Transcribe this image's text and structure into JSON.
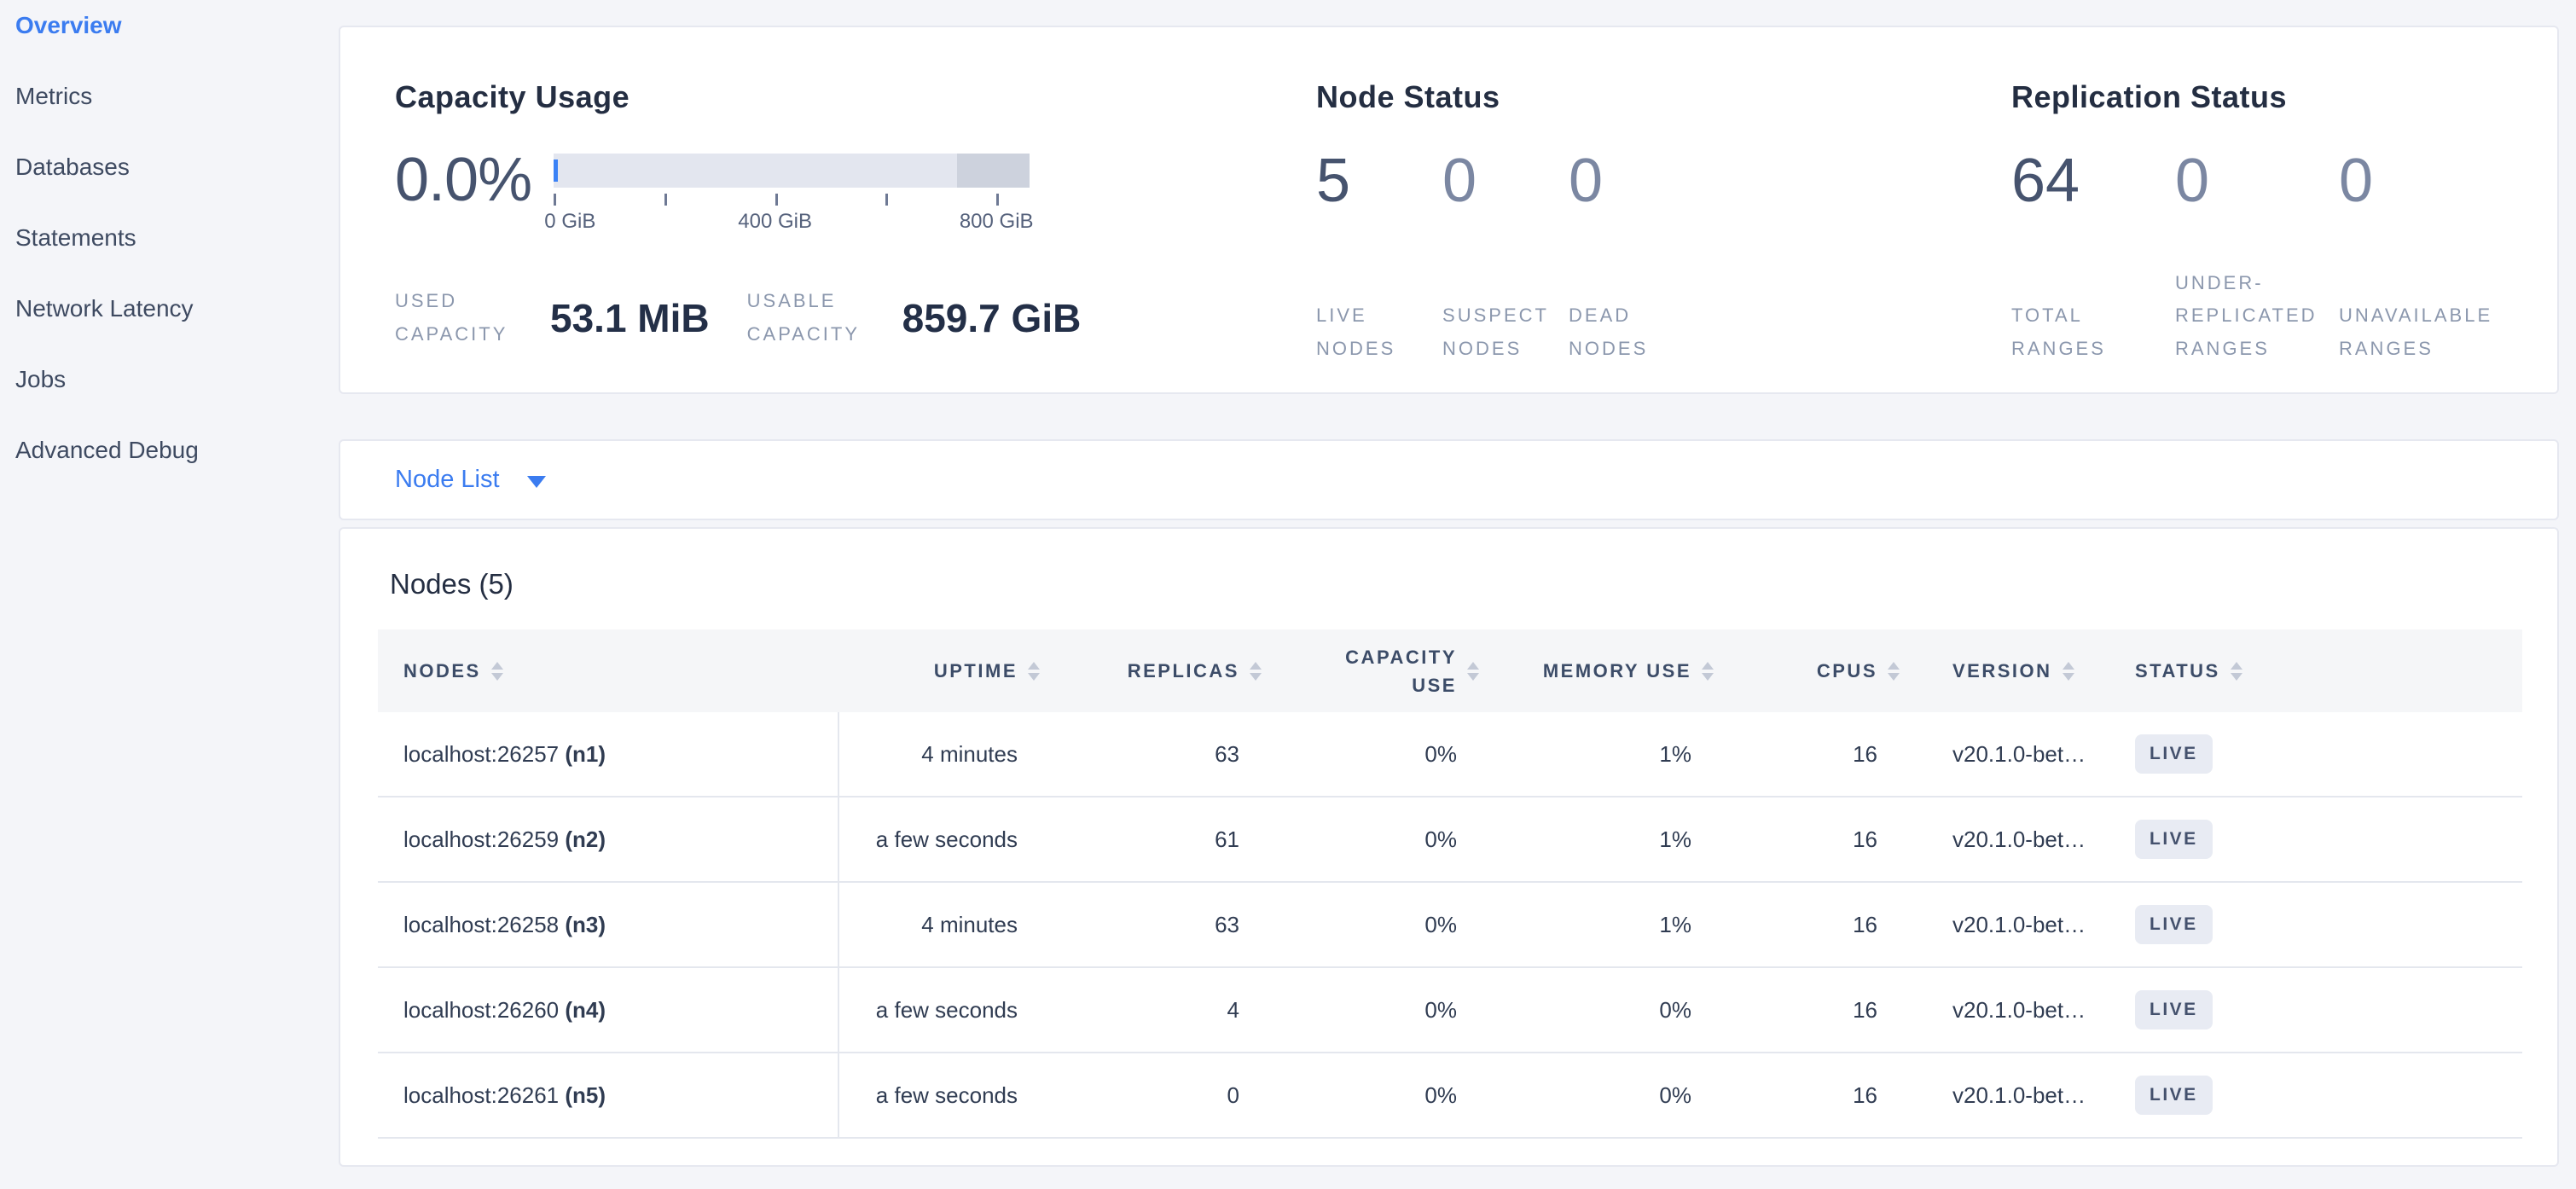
{
  "colors": {
    "accent_blue": "#3b7cf0",
    "bar_used_blue": "#3b82f6",
    "bar_bg": "#e3e6ef",
    "bar_secondary": "#cdd2dd",
    "badge_bg": "#e8ebf3",
    "badge_text": "#44516d"
  },
  "sidebar": {
    "items": [
      {
        "label": "Overview",
        "active": true
      },
      {
        "label": "Metrics",
        "active": false
      },
      {
        "label": "Databases",
        "active": false
      },
      {
        "label": "Statements",
        "active": false
      },
      {
        "label": "Network Latency",
        "active": false
      },
      {
        "label": "Jobs",
        "active": false
      },
      {
        "label": "Advanced Debug",
        "active": false
      }
    ]
  },
  "summary": {
    "capacity": {
      "title": "Capacity Usage",
      "percent": "0.0%",
      "bar": {
        "axis_max_gib": 860,
        "used_pct": 0.006,
        "secondary_start_pct": 84.8,
        "ticks": [
          {
            "gib": 0,
            "label": "0 GiB"
          },
          {
            "gib": 200,
            "label": ""
          },
          {
            "gib": 400,
            "label": "400 GiB"
          },
          {
            "gib": 600,
            "label": ""
          },
          {
            "gib": 800,
            "label": "800 GiB"
          }
        ]
      },
      "stats": [
        {
          "label": "USED CAPACITY",
          "value": "53.1 MiB"
        },
        {
          "label": "USABLE CAPACITY",
          "value": "859.7 GiB"
        }
      ]
    },
    "node_status": {
      "title": "Node Status",
      "stats": [
        {
          "value": "5",
          "label": "LIVE NODES",
          "muted": false
        },
        {
          "value": "0",
          "label": "SUSPECT NODES",
          "muted": true
        },
        {
          "value": "0",
          "label": "DEAD NODES",
          "muted": true
        }
      ]
    },
    "replication": {
      "title": "Replication Status",
      "stats": [
        {
          "value": "64",
          "label": "TOTAL RANGES",
          "muted": false
        },
        {
          "value": "0",
          "label": "UNDER-REPLICATED RANGES",
          "muted": true
        },
        {
          "value": "0",
          "label": "UNAVAILABLE RANGES",
          "muted": true
        }
      ]
    }
  },
  "view_selector": {
    "label": "Node List"
  },
  "nodes_table": {
    "heading": "Nodes (5)",
    "columns": [
      {
        "key": "node",
        "label": "NODES"
      },
      {
        "key": "uptime",
        "label": "UPTIME"
      },
      {
        "key": "replicas",
        "label": "REPLICAS"
      },
      {
        "key": "capacity_use",
        "label": "CAPACITY USE"
      },
      {
        "key": "memory_use",
        "label": "MEMORY USE"
      },
      {
        "key": "cpus",
        "label": "CPUS"
      },
      {
        "key": "version",
        "label": "VERSION"
      },
      {
        "key": "status",
        "label": "STATUS"
      }
    ],
    "rows": [
      {
        "node": "localhost:26257",
        "id": "(n1)",
        "uptime": "4 minutes",
        "replicas": "63",
        "capacity_use": "0%",
        "memory_use": "1%",
        "cpus": "16",
        "version": "v20.1.0-bet…",
        "status": "LIVE"
      },
      {
        "node": "localhost:26259",
        "id": "(n2)",
        "uptime": "a few seconds",
        "replicas": "61",
        "capacity_use": "0%",
        "memory_use": "1%",
        "cpus": "16",
        "version": "v20.1.0-bet…",
        "status": "LIVE"
      },
      {
        "node": "localhost:26258",
        "id": "(n3)",
        "uptime": "4 minutes",
        "replicas": "63",
        "capacity_use": "0%",
        "memory_use": "1%",
        "cpus": "16",
        "version": "v20.1.0-bet…",
        "status": "LIVE"
      },
      {
        "node": "localhost:26260",
        "id": "(n4)",
        "uptime": "a few seconds",
        "replicas": "4",
        "capacity_use": "0%",
        "memory_use": "0%",
        "cpus": "16",
        "version": "v20.1.0-bet…",
        "status": "LIVE"
      },
      {
        "node": "localhost:26261",
        "id": "(n5)",
        "uptime": "a few seconds",
        "replicas": "0",
        "capacity_use": "0%",
        "memory_use": "0%",
        "cpus": "16",
        "version": "v20.1.0-bet…",
        "status": "LIVE"
      }
    ]
  }
}
